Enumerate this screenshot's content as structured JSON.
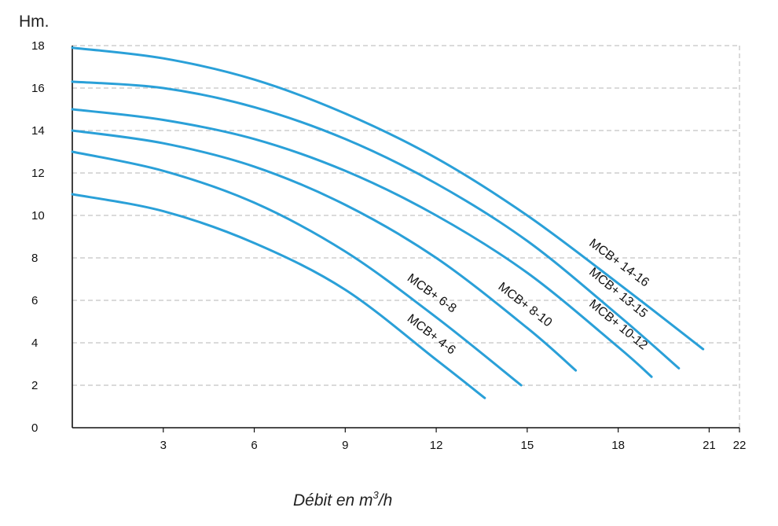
{
  "chart_data": {
    "type": "line",
    "ylabel": "Hm.",
    "xlabel": "Débit en m",
    "xlabel_sup": "3",
    "xlabel_suffix": "/h",
    "xlim": [
      0,
      22
    ],
    "ylim": [
      0,
      18
    ],
    "x_ticks": [
      3,
      6,
      9,
      12,
      15,
      18,
      21,
      22
    ],
    "y_ticks": [
      0,
      2,
      4,
      6,
      8,
      10,
      12,
      14,
      16,
      18
    ],
    "grid": true,
    "line_color": "#2aa0d8",
    "series": [
      {
        "name": "MCB+ 4-6",
        "x": [
          0,
          3,
          6,
          9,
          12,
          13.6
        ],
        "y": [
          11,
          10.2,
          8.7,
          6.5,
          3.2,
          1.4
        ]
      },
      {
        "name": "MCB+ 6-8",
        "x": [
          0,
          3,
          6,
          9,
          12,
          14.8
        ],
        "y": [
          13,
          12.1,
          10.6,
          8.3,
          5.2,
          2.0
        ]
      },
      {
        "name": "MCB+ 8-10",
        "x": [
          0,
          3,
          6,
          9,
          12,
          15,
          16.6
        ],
        "y": [
          14,
          13.4,
          12.3,
          10.5,
          8.0,
          4.7,
          2.7
        ]
      },
      {
        "name": "MCB+ 10-12",
        "x": [
          0,
          3,
          6,
          9,
          12,
          15,
          18,
          19.1
        ],
        "y": [
          15,
          14.5,
          13.6,
          12.1,
          10.0,
          7.3,
          3.8,
          2.4
        ]
      },
      {
        "name": "MCB+ 13-15",
        "x": [
          0,
          3,
          6,
          9,
          12,
          15,
          18,
          20.0
        ],
        "y": [
          16.3,
          16.0,
          15.1,
          13.6,
          11.5,
          8.8,
          5.3,
          2.8
        ]
      },
      {
        "name": "MCB+ 14-16",
        "x": [
          0,
          3,
          6,
          9,
          12,
          15,
          18,
          20.8
        ],
        "y": [
          17.9,
          17.4,
          16.4,
          14.8,
          12.7,
          10.0,
          6.8,
          3.7
        ]
      }
    ],
    "annotations": [
      "MCB+ 4-6",
      "MCB+ 6-8",
      "MCB+ 8-10",
      "MCB+ 10-12",
      "MCB+ 13-15",
      "MCB+ 14-16"
    ]
  }
}
